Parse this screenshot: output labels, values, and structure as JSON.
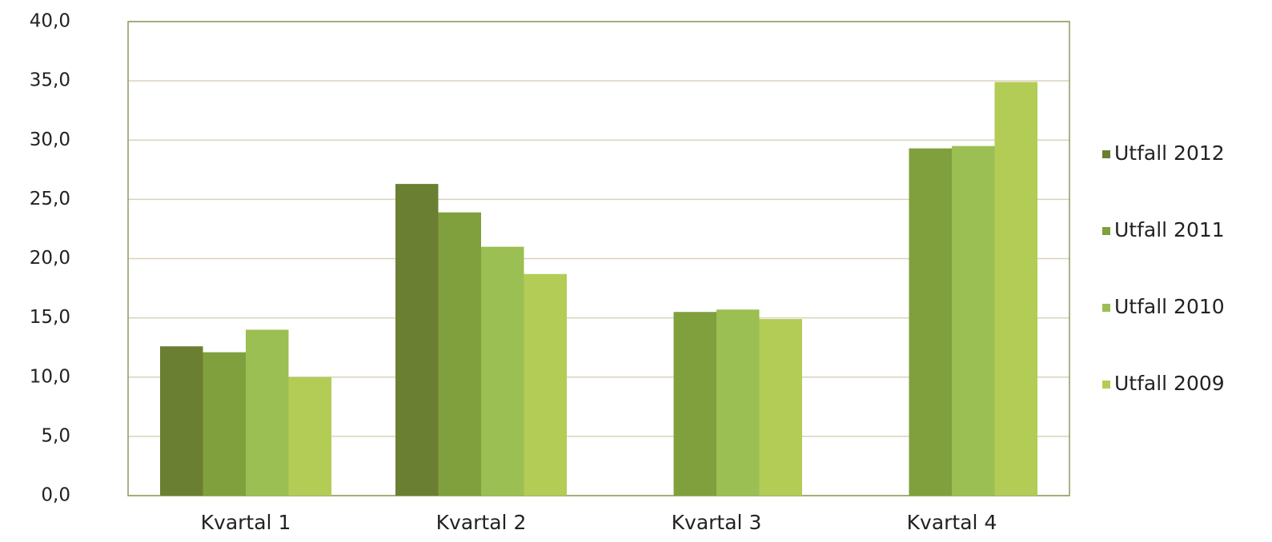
{
  "chart_data": {
    "type": "bar",
    "categories": [
      "Kvartal 1",
      "Kvartal 2",
      "Kvartal 3",
      "Kvartal 4"
    ],
    "series": [
      {
        "name": "Utfall 2012",
        "color": "#6a7f32",
        "values": [
          12.6,
          26.3,
          null,
          null
        ]
      },
      {
        "name": "Utfall 2011",
        "color": "#7fa03d",
        "values": [
          12.1,
          23.9,
          15.5,
          29.3
        ]
      },
      {
        "name": "Utfall 2010",
        "color": "#9bbf52",
        "values": [
          14.0,
          21.0,
          15.7,
          29.5
        ]
      },
      {
        "name": "Utfall 2009",
        "color": "#b2cc55",
        "values": [
          10.0,
          18.7,
          14.9,
          34.9
        ]
      }
    ],
    "ylim": [
      0,
      40
    ],
    "yticks": [
      {
        "value": 0,
        "label": "0,0"
      },
      {
        "value": 5,
        "label": "5,0"
      },
      {
        "value": 10,
        "label": "10,0"
      },
      {
        "value": 15,
        "label": "15,0"
      },
      {
        "value": 20,
        "label": "20,0"
      },
      {
        "value": 25,
        "label": "25,0"
      },
      {
        "value": 30,
        "label": "30,0"
      },
      {
        "value": 35,
        "label": "35,0"
      },
      {
        "value": 40,
        "label": "40,0"
      }
    ],
    "grid": true,
    "legend": "right"
  }
}
